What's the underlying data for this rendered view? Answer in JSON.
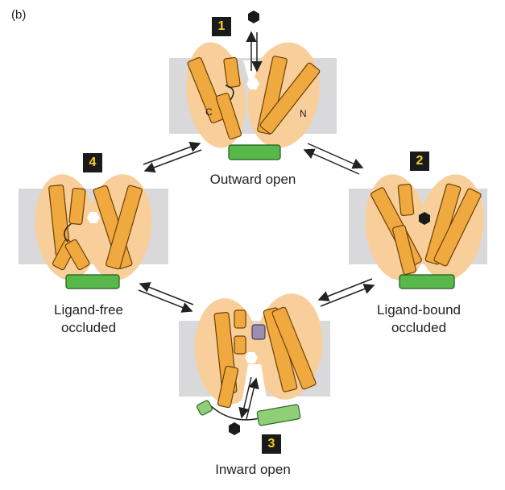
{
  "panel_label": "(b)",
  "states": [
    {
      "number": "1",
      "label": "Outward open"
    },
    {
      "number": "2",
      "label": "Ligand-bound\noccluded"
    },
    {
      "number": "3",
      "label": "Inward open"
    },
    {
      "number": "4",
      "label": "Ligand-free\noccluded"
    }
  ],
  "termini": {
    "c": "C",
    "n": "N"
  },
  "colors": {
    "membrane": "#d9d9db",
    "domain": "#f8cf9a",
    "helix": "#f0a93f",
    "helix_outline": "#6b3f06",
    "green_helix": "#59b84a",
    "green_light": "#8fcf78",
    "ligand": "#1a1a1a",
    "purple": "#9a8fb0"
  }
}
